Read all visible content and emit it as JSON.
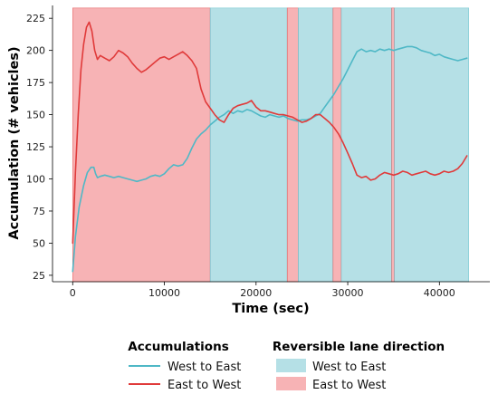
{
  "chart_data": {
    "type": "line",
    "xlabel": "Time (sec)",
    "ylabel": "Accumulation (# vehicles)",
    "xlim": [
      -2200,
      45500
    ],
    "ylim": [
      20,
      235
    ],
    "x_ticks": [
      0,
      10000,
      20000,
      30000,
      40000
    ],
    "y_ticks": [
      25,
      50,
      75,
      100,
      125,
      150,
      175,
      200,
      225
    ],
    "x_tick_labels": [
      "0",
      "10000",
      "20000",
      "30000",
      "40000"
    ],
    "y_tick_labels": [
      "25",
      "50",
      "75",
      "100",
      "125",
      "150",
      "175",
      "200",
      "225"
    ],
    "grid": false,
    "band_ymax": 233,
    "colors": {
      "west_to_east_line": "#4fb8c6",
      "east_to_west_line": "#e03a3a",
      "west_to_east_band": "#b5e0e6",
      "east_to_west_band": "#f7b3b5"
    },
    "bands": [
      {
        "direction": "east_to_west",
        "x0": 0,
        "x1": 15000
      },
      {
        "direction": "west_to_east",
        "x0": 15000,
        "x1": 23400
      },
      {
        "direction": "east_to_west",
        "x0": 23400,
        "x1": 24600
      },
      {
        "direction": "west_to_east",
        "x0": 24600,
        "x1": 28400
      },
      {
        "direction": "east_to_west",
        "x0": 28400,
        "x1": 29300
      },
      {
        "direction": "west_to_east",
        "x0": 29300,
        "x1": 34800
      },
      {
        "direction": "east_to_west",
        "x0": 34800,
        "x1": 35100
      },
      {
        "direction": "west_to_east",
        "x0": 35100,
        "x1": 43200
      }
    ],
    "series": [
      {
        "name": "West to East",
        "key": "west_to_east",
        "x": [
          0,
          300,
          700,
          1200,
          1600,
          2000,
          2300,
          2500,
          2700,
          3000,
          3500,
          4000,
          4500,
          5000,
          5500,
          6000,
          6500,
          7000,
          7500,
          8000,
          8500,
          9000,
          9500,
          10000,
          10500,
          11000,
          11500,
          12000,
          12500,
          13000,
          13500,
          14000,
          14500,
          15000,
          15500,
          16000,
          16500,
          17000,
          17500,
          18000,
          18500,
          19000,
          19500,
          20000,
          20500,
          21000,
          21500,
          22000,
          22500,
          23000,
          23500,
          24000,
          24500,
          25000,
          25500,
          26000,
          26500,
          27000,
          27500,
          28000,
          28500,
          29000,
          29500,
          30000,
          30500,
          31000,
          31500,
          32000,
          32500,
          33000,
          33500,
          34000,
          34500,
          35000,
          35500,
          36000,
          36500,
          37000,
          37500,
          38000,
          38500,
          39000,
          39500,
          40000,
          40500,
          41000,
          41500,
          42000,
          42500,
          43000
        ],
        "y": [
          28,
          55,
          78,
          95,
          105,
          109,
          109,
          104,
          101,
          102,
          103,
          102,
          101,
          102,
          101,
          100,
          99,
          98,
          99,
          100,
          102,
          103,
          102,
          104,
          108,
          111,
          110,
          111,
          116,
          124,
          131,
          135,
          138,
          142,
          145,
          148,
          150,
          153,
          151,
          153,
          152,
          154,
          153,
          151,
          149,
          148,
          150,
          149,
          148,
          149,
          147,
          146,
          145,
          146,
          146,
          147,
          149,
          151,
          156,
          161,
          166,
          172,
          178,
          185,
          192,
          199,
          201,
          199,
          200,
          199,
          201,
          200,
          201,
          200,
          201,
          202,
          203,
          203,
          202,
          200,
          199,
          198,
          196,
          197,
          195,
          194,
          193,
          192,
          193,
          194
        ]
      },
      {
        "name": "East to West",
        "key": "east_to_west",
        "x": [
          0,
          300,
          600,
          900,
          1200,
          1500,
          1800,
          2100,
          2400,
          2700,
          3000,
          3500,
          4000,
          4500,
          5000,
          5500,
          6000,
          6500,
          7000,
          7500,
          8000,
          8500,
          9000,
          9500,
          10000,
          10500,
          11000,
          11500,
          12000,
          12500,
          13000,
          13500,
          14000,
          14500,
          15000,
          15500,
          16000,
          16500,
          17000,
          17500,
          18000,
          18500,
          19000,
          19500,
          20000,
          20500,
          21000,
          21500,
          22000,
          22500,
          23000,
          23500,
          24000,
          24500,
          25000,
          25500,
          26000,
          26500,
          27000,
          27500,
          28000,
          28500,
          29000,
          29500,
          30000,
          30500,
          31000,
          31500,
          32000,
          32500,
          33000,
          33500,
          34000,
          34500,
          35000,
          35500,
          36000,
          36500,
          37000,
          37500,
          38000,
          38500,
          39000,
          39500,
          40000,
          40500,
          41000,
          41500,
          42000,
          42500,
          43000
        ],
        "y": [
          50,
          105,
          150,
          185,
          205,
          218,
          222,
          215,
          200,
          193,
          196,
          194,
          192,
          195,
          200,
          198,
          195,
          190,
          186,
          183,
          185,
          188,
          191,
          194,
          195,
          193,
          195,
          197,
          199,
          196,
          192,
          186,
          170,
          160,
          155,
          150,
          146,
          144,
          150,
          155,
          157,
          158,
          159,
          161,
          156,
          153,
          153,
          152,
          151,
          150,
          150,
          149,
          148,
          146,
          144,
          145,
          147,
          150,
          150,
          147,
          144,
          140,
          135,
          128,
          120,
          112,
          103,
          101,
          102,
          99,
          100,
          103,
          105,
          104,
          103,
          104,
          106,
          105,
          103,
          104,
          105,
          106,
          104,
          103,
          104,
          106,
          105,
          106,
          108,
          112,
          118
        ]
      }
    ],
    "legend": {
      "accumulations_title": "Accumulations",
      "lane_title": "Reversible lane direction",
      "items": [
        {
          "label": "West to East",
          "kind": "line",
          "key": "west_to_east"
        },
        {
          "label": "East to West",
          "kind": "line",
          "key": "east_to_west"
        },
        {
          "label": "West to East",
          "kind": "band",
          "key": "west_to_east"
        },
        {
          "label": "East to West",
          "kind": "band",
          "key": "east_to_west"
        }
      ]
    }
  }
}
